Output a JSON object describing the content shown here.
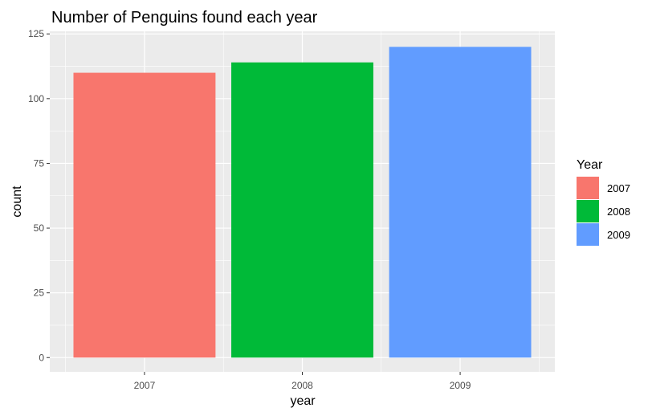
{
  "chart_data": {
    "type": "bar",
    "title": "Number of Penguins found each year",
    "xlabel": "year",
    "ylabel": "count",
    "categories": [
      "2007",
      "2008",
      "2009"
    ],
    "values": [
      110,
      114,
      120
    ],
    "ylim": [
      -5.5,
      126
    ],
    "yticks": [
      0,
      25,
      50,
      75,
      100,
      125
    ],
    "ytick_labels": [
      "0",
      "25",
      "50",
      "75",
      "100",
      "125"
    ],
    "grid": true,
    "legend": {
      "title": "Year",
      "position": "right",
      "entries": [
        "2007",
        "2008",
        "2009"
      ]
    },
    "colors": [
      "#F8766D",
      "#00BA38",
      "#619CFF"
    ],
    "panel_background": "#EBEBEB",
    "grid_color": "#FFFFFF"
  }
}
